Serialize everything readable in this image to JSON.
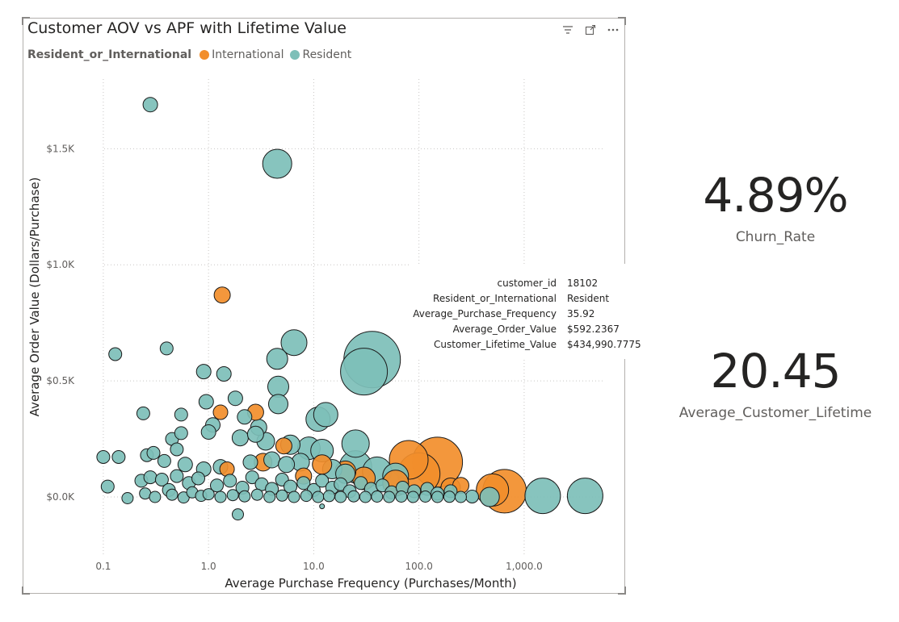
{
  "visual": {
    "title": "Customer AOV vs APF with Lifetime Value",
    "icons": [
      "filter-icon",
      "focus-mode-icon",
      "more-options-icon"
    ]
  },
  "legend": {
    "title": "Resident_or_International",
    "items": [
      {
        "label": "International",
        "color": "#F28E2B"
      },
      {
        "label": "Resident",
        "color": "#7DBFB8"
      }
    ]
  },
  "chart_data": {
    "type": "scatter",
    "title": "Customer AOV vs APF with Lifetime Value",
    "xlabel": "Average Purchase Frequency (Purchases/Month)",
    "ylabel": "Average Order Value (Dollars/Purchase)",
    "x_scale": "log",
    "xlim": [
      0.06,
      7000
    ],
    "ylim": [
      -250,
      1800
    ],
    "x_ticks": [
      {
        "value": 0.1,
        "label": "0.1"
      },
      {
        "value": 1,
        "label": "1.0"
      },
      {
        "value": 10,
        "label": "10.0"
      },
      {
        "value": 100,
        "label": "100.0"
      },
      {
        "value": 1000,
        "label": "1,000.0"
      }
    ],
    "y_ticks": [
      {
        "value": 0,
        "label": "$0.0K"
      },
      {
        "value": 500,
        "label": "$0.5K"
      },
      {
        "value": 1000,
        "label": "$1.0K"
      },
      {
        "value": 1500,
        "label": "$1.5K"
      }
    ],
    "grid": true,
    "legend_position": "top-left",
    "size_field": "Customer_Lifetime_Value",
    "series": [
      {
        "name": "Resident",
        "color": "#7DBFB8",
        "points": [
          [
            0.28,
            1690,
            9
          ],
          [
            4.5,
            1435,
            18
          ],
          [
            6.5,
            665,
            16
          ],
          [
            4.5,
            595,
            13
          ],
          [
            4.6,
            475,
            13
          ],
          [
            4.6,
            400,
            12
          ],
          [
            11.0,
            335,
            15
          ],
          [
            13.0,
            355,
            15
          ],
          [
            35.9,
            592,
            35
          ],
          [
            30.0,
            540,
            29
          ],
          [
            0.13,
            615,
            8
          ],
          [
            0.4,
            640,
            8
          ],
          [
            0.9,
            540,
            9
          ],
          [
            1.4,
            530,
            9
          ],
          [
            0.95,
            410,
            9
          ],
          [
            1.8,
            425,
            9
          ],
          [
            0.24,
            360,
            8
          ],
          [
            0.55,
            355,
            8
          ],
          [
            1.1,
            310,
            9
          ],
          [
            2.2,
            345,
            9
          ],
          [
            3.0,
            300,
            10
          ],
          [
            2.0,
            255,
            10
          ],
          [
            2.8,
            270,
            10
          ],
          [
            3.5,
            240,
            11
          ],
          [
            6.0,
            225,
            12
          ],
          [
            9.0,
            210,
            14
          ],
          [
            12.0,
            200,
            14
          ],
          [
            25.0,
            230,
            17
          ],
          [
            25.0,
            130,
            20
          ],
          [
            40.0,
            110,
            18
          ],
          [
            60.0,
            90,
            16
          ],
          [
            0.45,
            250,
            8
          ],
          [
            0.55,
            275,
            8
          ],
          [
            1.0,
            280,
            9
          ],
          [
            0.5,
            205,
            8
          ],
          [
            0.1,
            172,
            8
          ],
          [
            0.14,
            172,
            8
          ],
          [
            0.26,
            180,
            8
          ],
          [
            0.3,
            190,
            8
          ],
          [
            0.38,
            155,
            8
          ],
          [
            0.6,
            140,
            9
          ],
          [
            0.9,
            120,
            9
          ],
          [
            1.3,
            130,
            9
          ],
          [
            2.5,
            150,
            9
          ],
          [
            4.0,
            160,
            10
          ],
          [
            5.5,
            140,
            10
          ],
          [
            7.5,
            150,
            11
          ],
          [
            15.0,
            120,
            12
          ],
          [
            20.0,
            100,
            12
          ],
          [
            0.11,
            45,
            8
          ],
          [
            0.23,
            70,
            8
          ],
          [
            0.28,
            85,
            8
          ],
          [
            0.36,
            75,
            8
          ],
          [
            0.42,
            30,
            8
          ],
          [
            0.5,
            90,
            8
          ],
          [
            0.65,
            60,
            8
          ],
          [
            0.8,
            80,
            8
          ],
          [
            1.2,
            50,
            8
          ],
          [
            1.6,
            70,
            8
          ],
          [
            2.1,
            40,
            8
          ],
          [
            2.6,
            85,
            8
          ],
          [
            3.2,
            55,
            8
          ],
          [
            4.0,
            35,
            8
          ],
          [
            5.0,
            75,
            8
          ],
          [
            6.0,
            45,
            8
          ],
          [
            8.0,
            60,
            8
          ],
          [
            10.0,
            30,
            8
          ],
          [
            12.0,
            70,
            8
          ],
          [
            15.0,
            40,
            8
          ],
          [
            18.0,
            55,
            8
          ],
          [
            22.0,
            25,
            8
          ],
          [
            28.0,
            60,
            8
          ],
          [
            35.0,
            35,
            8
          ],
          [
            45.0,
            50,
            8
          ],
          [
            55.0,
            20,
            8
          ],
          [
            70.0,
            40,
            8
          ],
          [
            90.0,
            25,
            8
          ],
          [
            120.0,
            35,
            8
          ],
          [
            150.0,
            15,
            8
          ],
          [
            200.0,
            25,
            8
          ],
          [
            0.17,
            -5,
            7
          ],
          [
            0.25,
            15,
            7
          ],
          [
            0.31,
            0,
            7
          ],
          [
            0.45,
            10,
            7
          ],
          [
            0.58,
            -2,
            7
          ],
          [
            0.7,
            20,
            7
          ],
          [
            0.85,
            5,
            7
          ],
          [
            1.0,
            12,
            7
          ],
          [
            1.3,
            0,
            7
          ],
          [
            1.7,
            8,
            7
          ],
          [
            2.2,
            3,
            7
          ],
          [
            2.9,
            10,
            7
          ],
          [
            3.8,
            0,
            7
          ],
          [
            5.0,
            6,
            7
          ],
          [
            6.5,
            0,
            7
          ],
          [
            8.5,
            5,
            7
          ],
          [
            11.0,
            0,
            7
          ],
          [
            14.0,
            4,
            7
          ],
          [
            18.0,
            0,
            7
          ],
          [
            24.0,
            3,
            7
          ],
          [
            31.0,
            0,
            7
          ],
          [
            40.0,
            2,
            7
          ],
          [
            52.0,
            0,
            7
          ],
          [
            68.0,
            2,
            7
          ],
          [
            88.0,
            0,
            7
          ],
          [
            115.0,
            2,
            7
          ],
          [
            150.0,
            0,
            7
          ],
          [
            195.0,
            1,
            7
          ],
          [
            250.0,
            0,
            7
          ],
          [
            320.0,
            2,
            8
          ],
          [
            470.0,
            0,
            12
          ],
          [
            1500.0,
            5,
            22
          ],
          [
            3800.0,
            5,
            22
          ],
          [
            1.9,
            -75,
            7
          ],
          [
            12.0,
            -40,
            3
          ]
        ]
      },
      {
        "name": "International",
        "color": "#F28E2B",
        "points": [
          [
            1.35,
            870,
            10
          ],
          [
            1.3,
            365,
            9
          ],
          [
            2.8,
            365,
            10
          ],
          [
            5.2,
            220,
            10
          ],
          [
            3.3,
            150,
            11
          ],
          [
            12.0,
            140,
            12
          ],
          [
            20.0,
            110,
            13
          ],
          [
            80.0,
            160,
            24
          ],
          [
            150.0,
            150,
            31
          ],
          [
            100.0,
            100,
            26
          ],
          [
            30.0,
            80,
            14
          ],
          [
            60.0,
            60,
            16
          ],
          [
            200.0,
            40,
            12
          ],
          [
            500.0,
            30,
            20
          ],
          [
            650.0,
            25,
            27
          ],
          [
            8.0,
            90,
            10
          ],
          [
            1.5,
            120,
            9
          ],
          [
            250.0,
            50,
            10
          ]
        ]
      }
    ]
  },
  "tooltip": {
    "rows": [
      {
        "key": "customer_id",
        "value": "18102"
      },
      {
        "key": "Resident_or_International",
        "value": "Resident"
      },
      {
        "key": "Average_Purchase_Frequency",
        "value": "35.92"
      },
      {
        "key": "Average_Order_Value",
        "value": "$592.2367"
      },
      {
        "key": "Customer_Lifetime_Value",
        "value": "$434,990.7775"
      }
    ]
  },
  "cards": [
    {
      "value": "4.89%",
      "label": "Churn_Rate"
    },
    {
      "value": "20.45",
      "label": "Average_Customer_Lifetime"
    }
  ]
}
